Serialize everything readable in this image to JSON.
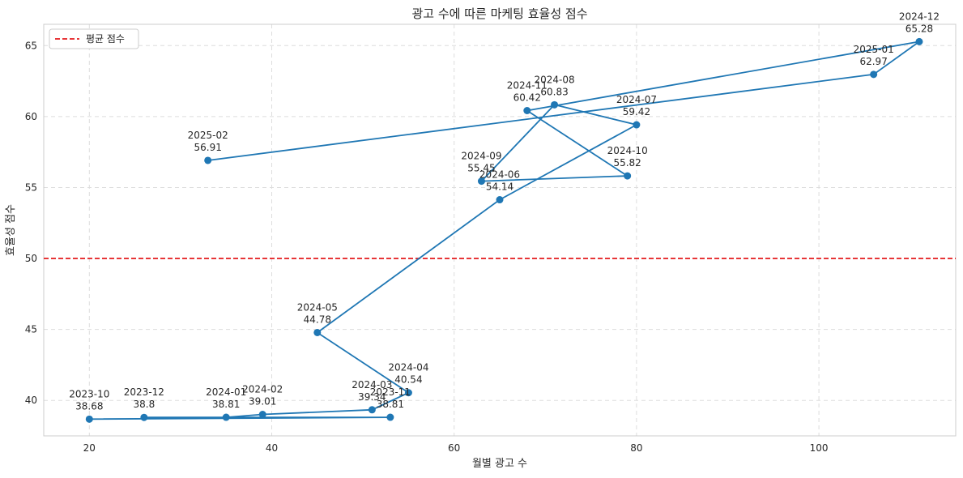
{
  "chart_data": {
    "type": "line",
    "title": "광고 수에 따른 마케팅 효율성 점수",
    "xlabel": "월별 광고 수",
    "ylabel": "효율성 점수",
    "xlim": [
      15,
      115
    ],
    "ylim": [
      37.5,
      66.5
    ],
    "xticks": [
      20,
      40,
      60,
      80,
      100
    ],
    "yticks": [
      40,
      45,
      50,
      55,
      60,
      65
    ],
    "grid": true,
    "series": [
      {
        "color": "#1f77b4",
        "points": [
          {
            "label": "2023-10",
            "x": 20,
            "y": 38.68
          },
          {
            "label": "2023-11",
            "x": 53,
            "y": 38.81
          },
          {
            "label": "2023-12",
            "x": 26,
            "y": 38.8
          },
          {
            "label": "2024-01",
            "x": 35,
            "y": 38.81
          },
          {
            "label": "2024-02",
            "x": 39,
            "y": 39.01
          },
          {
            "label": "2024-03",
            "x": 51,
            "y": 39.34
          },
          {
            "label": "2024-04",
            "x": 55,
            "y": 40.54
          },
          {
            "label": "2024-05",
            "x": 45,
            "y": 44.78
          },
          {
            "label": "2024-06",
            "x": 65,
            "y": 54.14
          },
          {
            "label": "2024-07",
            "x": 80,
            "y": 59.42
          },
          {
            "label": "2024-08",
            "x": 71,
            "y": 60.83
          },
          {
            "label": "2024-09",
            "x": 63,
            "y": 55.45
          },
          {
            "label": "2024-10",
            "x": 79,
            "y": 55.82
          },
          {
            "label": "2024-11",
            "x": 68,
            "y": 60.42
          },
          {
            "label": "2024-12",
            "x": 111,
            "y": 65.28
          },
          {
            "label": "2025-01",
            "x": 106,
            "y": 62.97
          },
          {
            "label": "2025-02",
            "x": 33,
            "y": 56.91
          }
        ]
      }
    ],
    "reference_line": {
      "name": "평균 점수",
      "y": 50,
      "color": "#e41a1c"
    },
    "legend": {
      "placement": "top-left",
      "entries": [
        "평균 점수"
      ]
    }
  }
}
